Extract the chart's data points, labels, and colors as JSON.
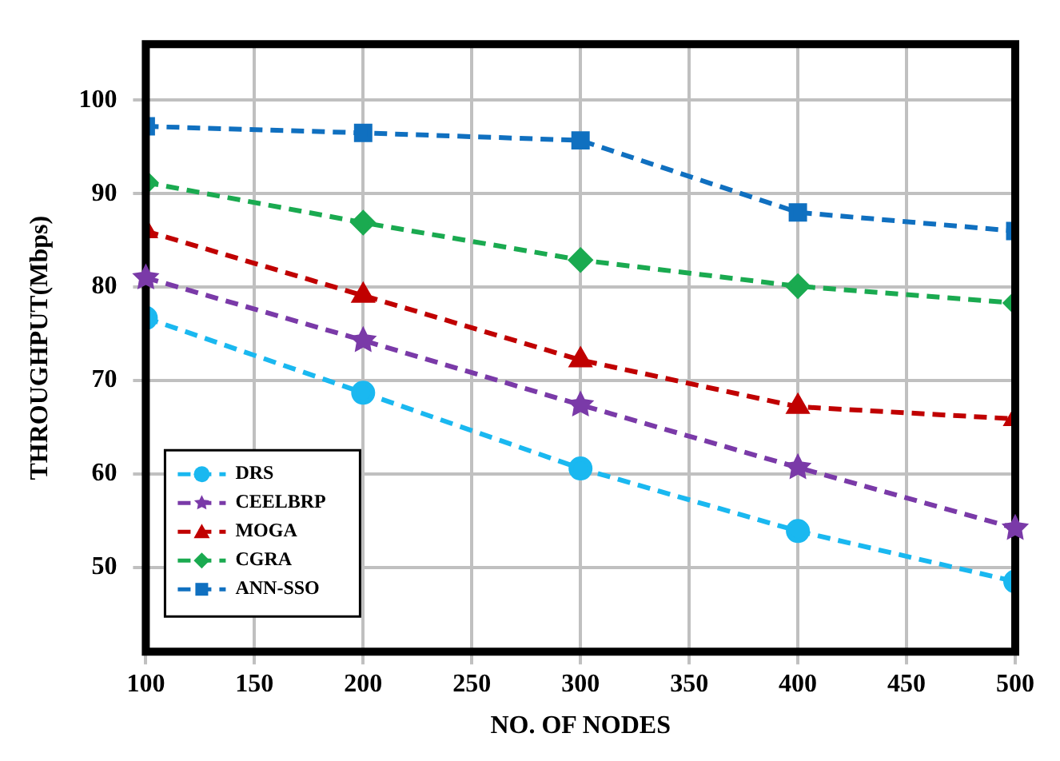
{
  "chart_data": {
    "type": "line",
    "xlabel": "NO. OF NODES",
    "ylabel": "THROUGHPUT(Mbps)",
    "x": [
      100,
      200,
      300,
      400,
      500
    ],
    "xlim": [
      100,
      500
    ],
    "xticks": [
      100,
      150,
      200,
      250,
      300,
      350,
      400,
      450,
      500
    ],
    "ylim": [
      41,
      106
    ],
    "yticks": [
      50,
      60,
      70,
      80,
      90,
      100
    ],
    "grid": true,
    "legend": "bottom left",
    "line_style": "dashed",
    "series": [
      {
        "name": "DRS",
        "color": "#1ab8f0",
        "marker": "circle",
        "values": [
          76.7,
          68.7,
          60.6,
          53.9,
          48.5
        ]
      },
      {
        "name": "CEELBRP",
        "color": "#7a3aa8",
        "marker": "star",
        "values": [
          81,
          74.3,
          67.4,
          60.7,
          54.2
        ]
      },
      {
        "name": "MOGA",
        "color": "#c00000",
        "marker": "triangle",
        "values": [
          86,
          79.1,
          72.2,
          67.2,
          65.9
        ]
      },
      {
        "name": "CGRA",
        "color": "#1aaa50",
        "marker": "diamond",
        "values": [
          91.2,
          86.9,
          82.9,
          80.1,
          78.3
        ]
      },
      {
        "name": "ANN-SSO",
        "color": "#1070c0",
        "marker": "square",
        "values": [
          97.2,
          96.5,
          95.7,
          88,
          86
        ]
      }
    ]
  }
}
